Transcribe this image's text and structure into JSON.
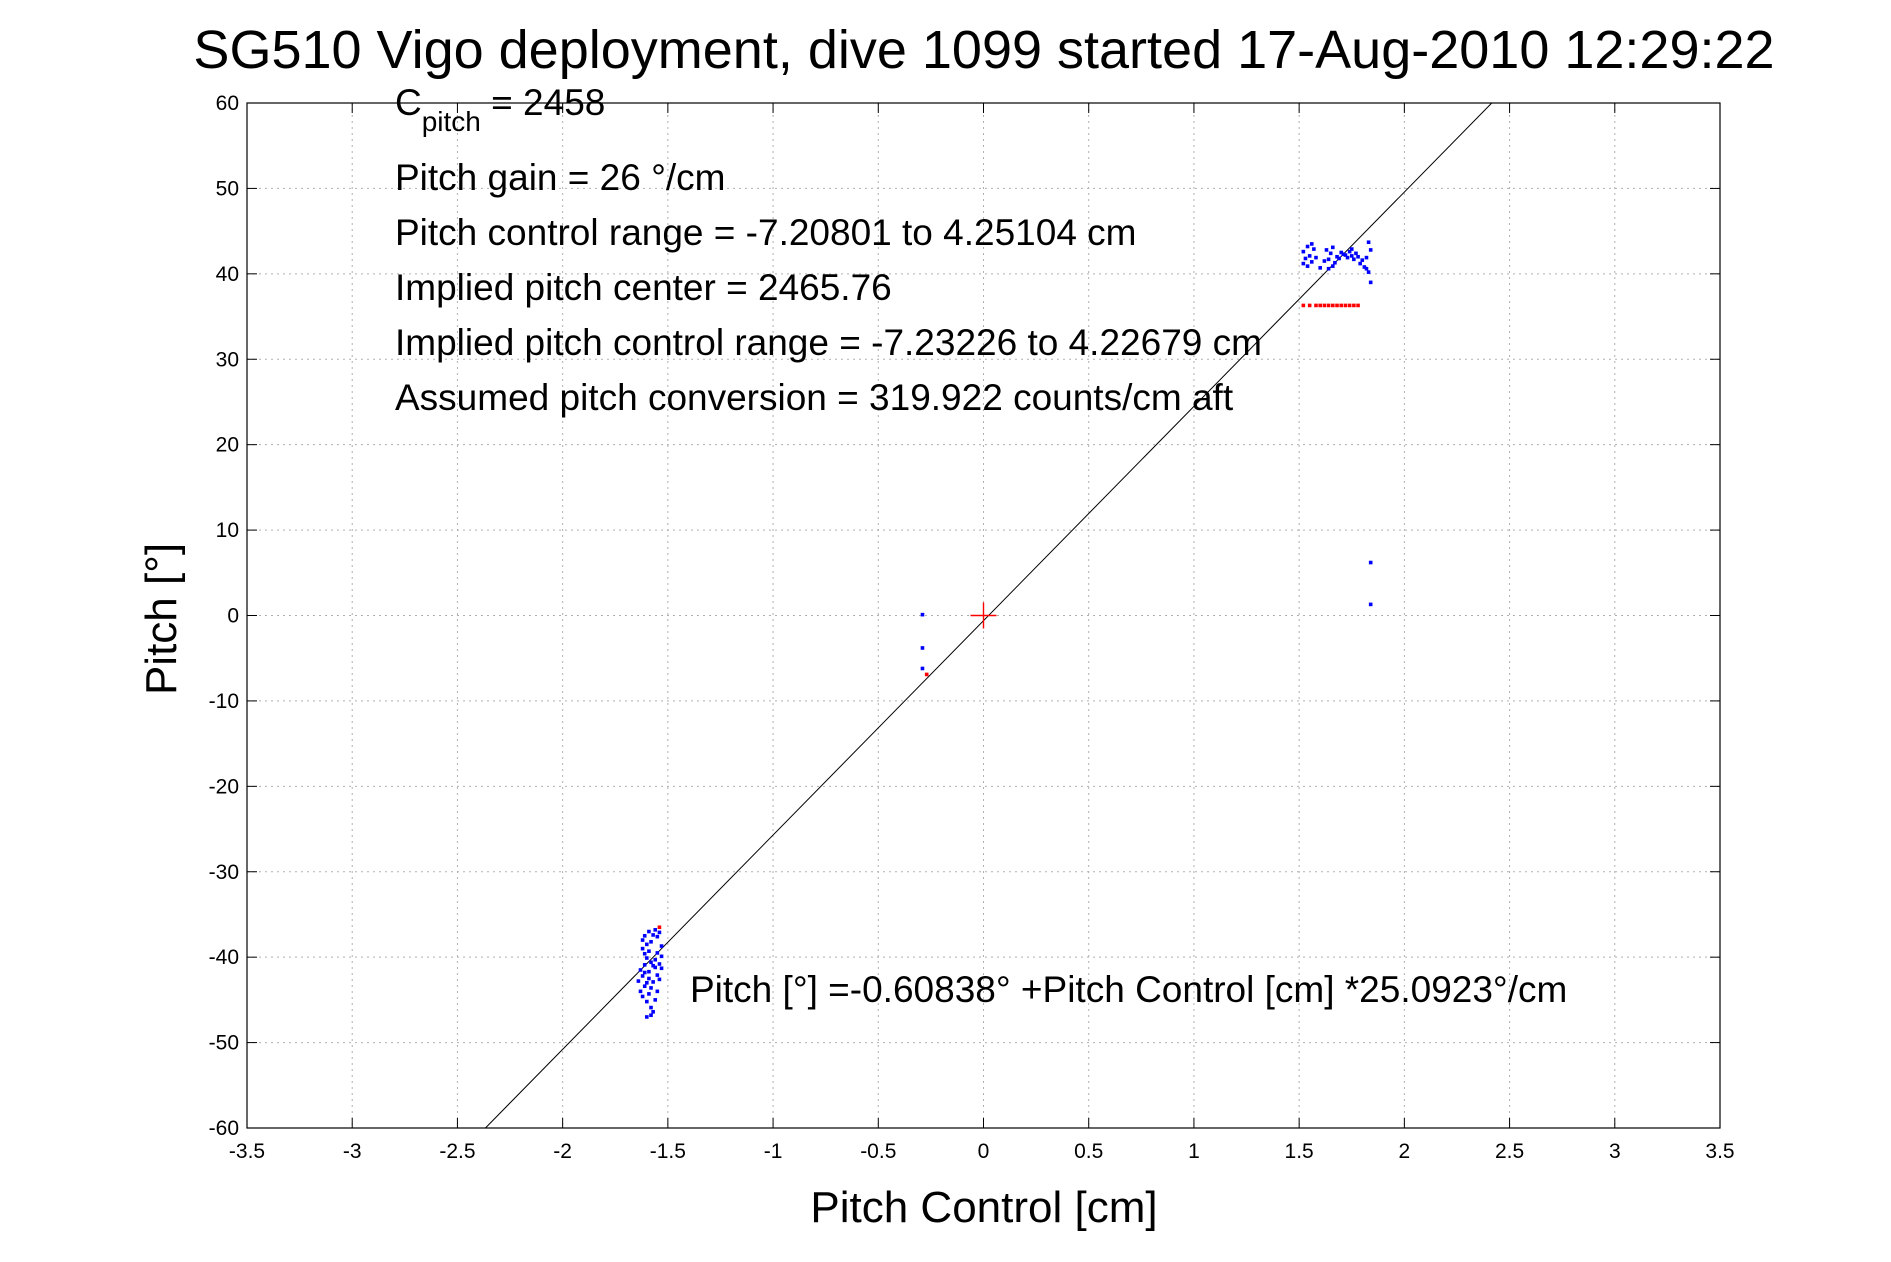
{
  "chart_data": {
    "type": "scatter",
    "title": "SG510 Vigo deployment, dive 1099 started 17-Aug-2010 12:29:22",
    "xlabel": "Pitch Control [cm]",
    "ylabel": "Pitch [°]",
    "xlim": [
      -3.5,
      3.5
    ],
    "ylim": [
      -60,
      60
    ],
    "grid": true,
    "xticks": [
      -3.5,
      -3,
      -2.5,
      -2,
      -1.5,
      -1,
      -0.5,
      0,
      0.5,
      1,
      1.5,
      2,
      2.5,
      3,
      3.5
    ],
    "xtick_labels": [
      "-3.5",
      "-3",
      "-2.5",
      "-2",
      "-1.5",
      "-1",
      "-0.5",
      "0",
      "0.5",
      "1",
      "1.5",
      "2",
      "2.5",
      "3",
      "3.5"
    ],
    "yticks": [
      60,
      50,
      40,
      30,
      20,
      10,
      0,
      -10,
      -20,
      -30,
      -40,
      -50,
      -60
    ],
    "ytick_labels": [
      "60",
      "50",
      "40",
      "30",
      "20",
      "10",
      "0",
      "-10",
      "-20",
      "-30",
      "-40",
      "-50",
      "-60"
    ],
    "annotations": {
      "c_pitch_base": "C",
      "c_pitch_sub": "pitch",
      "c_pitch_value": " = 2458",
      "pitch_gain": "Pitch gain = 26 °/cm",
      "control_range": "Pitch control range = -7.20801 to 4.25104 cm",
      "implied_center": "Implied pitch center = 2465.76",
      "implied_range": "Implied pitch control range = -7.23226 to 4.22679 cm",
      "conversion": "Assumed pitch conversion = 319.922 counts/cm aft",
      "fit_equation": "Pitch [°] =-0.60838° +Pitch Control [cm] *25.0923°/cm"
    },
    "fit_line": {
      "intercept": -0.60838,
      "slope": 25.0923,
      "color": "#000000"
    },
    "center_marker": {
      "x": 0,
      "y": 0,
      "color": "#ff0000"
    },
    "series": [
      {
        "color": "#0000ff",
        "points": [
          [
            -1.62,
            -38
          ],
          [
            -1.61,
            -37.5
          ],
          [
            -1.6,
            -38.5
          ],
          [
            -1.59,
            -37
          ],
          [
            -1.58,
            -38.2
          ],
          [
            -1.57,
            -37.4
          ],
          [
            -1.56,
            -36.8
          ],
          [
            -1.55,
            -37.6
          ],
          [
            -1.54,
            -37.1
          ],
          [
            -1.62,
            -39
          ],
          [
            -1.61,
            -39.6
          ],
          [
            -1.6,
            -40.1
          ],
          [
            -1.59,
            -39.3
          ],
          [
            -1.58,
            -40.6
          ],
          [
            -1.57,
            -41.0
          ],
          [
            -1.56,
            -40.3
          ],
          [
            -1.55,
            -39.5
          ],
          [
            -1.54,
            -40.8
          ],
          [
            -1.63,
            -41.5
          ],
          [
            -1.62,
            -42.2
          ],
          [
            -1.61,
            -41.8
          ],
          [
            -1.6,
            -43.0
          ],
          [
            -1.59,
            -42.5
          ],
          [
            -1.58,
            -43.6
          ],
          [
            -1.57,
            -42.9
          ],
          [
            -1.56,
            -41.2
          ],
          [
            -1.55,
            -42.1
          ],
          [
            -1.64,
            -42.8
          ],
          [
            -1.63,
            -44.0
          ],
          [
            -1.62,
            -44.6
          ],
          [
            -1.61,
            -43.4
          ],
          [
            -1.6,
            -45.2
          ],
          [
            -1.59,
            -44.3
          ],
          [
            -1.58,
            -45.9
          ],
          [
            -1.57,
            -46.4
          ],
          [
            -1.56,
            -45.0
          ],
          [
            -1.6,
            -47.0
          ],
          [
            -1.58,
            -46.8
          ],
          [
            -1.55,
            -44.0
          ],
          [
            -1.54,
            -42.6
          ],
          [
            -1.53,
            -41.3
          ],
          [
            -1.53,
            -39.9
          ],
          [
            -1.53,
            -38.7
          ],
          [
            -1.61,
            -40.9
          ],
          [
            -1.59,
            -41.7
          ],
          [
            -0.29,
            0.1
          ],
          [
            -0.29,
            -3.8
          ],
          [
            -0.29,
            -6.2
          ],
          [
            1.52,
            42.6
          ],
          [
            1.53,
            41.8
          ],
          [
            1.54,
            43.2
          ],
          [
            1.55,
            42.1
          ],
          [
            1.56,
            41.4
          ],
          [
            1.57,
            42.9
          ],
          [
            1.58,
            41.9
          ],
          [
            1.52,
            41.2
          ],
          [
            1.54,
            40.9
          ],
          [
            1.56,
            43.5
          ],
          [
            1.63,
            42.8
          ],
          [
            1.64,
            41.7
          ],
          [
            1.65,
            42.4
          ],
          [
            1.66,
            43.1
          ],
          [
            1.67,
            41.3
          ],
          [
            1.68,
            42.0
          ],
          [
            1.64,
            40.6
          ],
          [
            1.66,
            40.9
          ],
          [
            1.69,
            41.8
          ],
          [
            1.7,
            42.5
          ],
          [
            1.72,
            42.2
          ],
          [
            1.73,
            41.9
          ],
          [
            1.74,
            42.6
          ],
          [
            1.75,
            42.1
          ],
          [
            1.76,
            41.7
          ],
          [
            1.77,
            42.4
          ],
          [
            1.78,
            42.0
          ],
          [
            1.79,
            41.2
          ],
          [
            1.8,
            41.6
          ],
          [
            1.81,
            40.8
          ],
          [
            1.82,
            41.9
          ],
          [
            1.83,
            40.2
          ],
          [
            1.84,
            42.8
          ],
          [
            1.84,
            39.0
          ],
          [
            1.83,
            43.7
          ],
          [
            1.82,
            40.6
          ],
          [
            1.75,
            42.9
          ],
          [
            1.71,
            42.3
          ],
          [
            1.62,
            41.5
          ],
          [
            1.6,
            40.7
          ],
          [
            1.84,
            6.2
          ],
          [
            1.84,
            1.3
          ]
        ]
      },
      {
        "color": "#ff0000",
        "points": [
          [
            -1.54,
            -36.5
          ],
          [
            -0.27,
            -6.9
          ],
          [
            1.52,
            36.3
          ],
          [
            1.55,
            36.3
          ],
          [
            1.58,
            36.3
          ],
          [
            1.6,
            36.3
          ],
          [
            1.62,
            36.3
          ],
          [
            1.64,
            36.3
          ],
          [
            1.66,
            36.3
          ],
          [
            1.68,
            36.3
          ],
          [
            1.7,
            36.3
          ],
          [
            1.72,
            36.3
          ],
          [
            1.74,
            36.3
          ],
          [
            1.76,
            36.3
          ],
          [
            1.78,
            36.3
          ]
        ]
      }
    ]
  }
}
